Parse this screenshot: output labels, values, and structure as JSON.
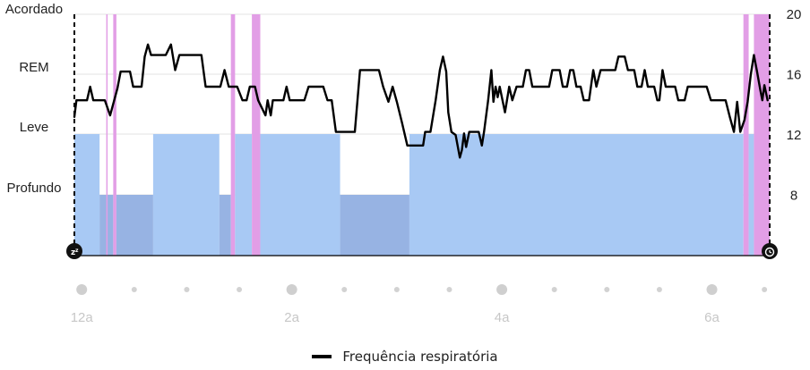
{
  "chart_data": {
    "type": "line",
    "title": "",
    "left_axis": {
      "type": "category",
      "categories": [
        "Acordado",
        "REM",
        "Leve",
        "Profundo"
      ]
    },
    "right_axis": {
      "ticks": [
        20,
        16,
        12,
        8
      ],
      "ylim": [
        4,
        20
      ]
    },
    "x_axis": {
      "ticks": [
        {
          "label": "12a",
          "hour": 0,
          "major": true
        },
        {
          "label": "",
          "hour": 0.5,
          "major": false
        },
        {
          "label": "",
          "hour": 1,
          "major": false
        },
        {
          "label": "",
          "hour": 1.5,
          "major": false
        },
        {
          "label": "2a",
          "hour": 2,
          "major": true
        },
        {
          "label": "",
          "hour": 2.5,
          "major": false
        },
        {
          "label": "",
          "hour": 3,
          "major": false
        },
        {
          "label": "",
          "hour": 3.5,
          "major": false
        },
        {
          "label": "4a",
          "hour": 4,
          "major": true
        },
        {
          "label": "",
          "hour": 4.5,
          "major": false
        },
        {
          "label": "",
          "hour": 5,
          "major": false
        },
        {
          "label": "",
          "hour": 5.5,
          "major": false
        },
        {
          "label": "6a",
          "hour": 6,
          "major": true
        },
        {
          "label": "",
          "hour": 6.5,
          "major": false
        }
      ],
      "range_hours": [
        -0.07,
        6.55
      ]
    },
    "sleep_window": {
      "start_hour": -0.07,
      "end_hour": 6.55
    },
    "stages": [
      {
        "stage": "Leve",
        "start": -0.07,
        "end": 0.17
      },
      {
        "stage": "Profundo",
        "start": 0.17,
        "end": 0.3
      },
      {
        "stage": "Acordado",
        "start": 0.3,
        "end": 0.33
      },
      {
        "stage": "Profundo",
        "start": 0.33,
        "end": 0.68
      },
      {
        "stage": "Leve",
        "start": 0.68,
        "end": 1.31
      },
      {
        "stage": "Profundo",
        "start": 1.31,
        "end": 1.42
      },
      {
        "stage": "Acordado",
        "start": 1.42,
        "end": 1.46
      },
      {
        "stage": "Leve",
        "start": 1.46,
        "end": 1.62
      },
      {
        "stage": "Acordado",
        "start": 1.62,
        "end": 1.7
      },
      {
        "stage": "Leve",
        "start": 1.7,
        "end": 2.46
      },
      {
        "stage": "Profundo",
        "start": 2.46,
        "end": 3.12
      },
      {
        "stage": "Leve",
        "start": 3.12,
        "end": 6.3
      },
      {
        "stage": "Acordado",
        "start": 6.3,
        "end": 6.35
      },
      {
        "stage": "Leve",
        "start": 6.35,
        "end": 6.4
      },
      {
        "stage": "Acordado",
        "start": 6.4,
        "end": 6.55
      }
    ],
    "series": [
      {
        "name": "Frequência respiratória",
        "color": "#000000",
        "points": [
          [
            -0.07,
            13.2
          ],
          [
            -0.05,
            14.3
          ],
          [
            0.05,
            14.3
          ],
          [
            0.08,
            15.2
          ],
          [
            0.11,
            14.3
          ],
          [
            0.22,
            14.3
          ],
          [
            0.27,
            13.3
          ],
          [
            0.34,
            15.1
          ],
          [
            0.37,
            16.2
          ],
          [
            0.46,
            16.2
          ],
          [
            0.49,
            15.2
          ],
          [
            0.57,
            15.2
          ],
          [
            0.6,
            17.2
          ],
          [
            0.63,
            18.0
          ],
          [
            0.66,
            17.3
          ],
          [
            0.8,
            17.3
          ],
          [
            0.85,
            18.0
          ],
          [
            0.89,
            16.3
          ],
          [
            0.93,
            17.3
          ],
          [
            1.14,
            17.3
          ],
          [
            1.18,
            15.2
          ],
          [
            1.32,
            15.2
          ],
          [
            1.36,
            16.3
          ],
          [
            1.4,
            15.2
          ],
          [
            1.48,
            15.2
          ],
          [
            1.53,
            14.3
          ],
          [
            1.57,
            14.3
          ],
          [
            1.6,
            15.2
          ],
          [
            1.65,
            15.2
          ],
          [
            1.68,
            14.3
          ],
          [
            1.75,
            13.3
          ],
          [
            1.77,
            14.3
          ],
          [
            1.8,
            13.3
          ],
          [
            1.82,
            14.3
          ],
          [
            1.92,
            14.3
          ],
          [
            1.95,
            15.2
          ],
          [
            1.98,
            14.3
          ],
          [
            2.12,
            14.3
          ],
          [
            2.16,
            15.2
          ],
          [
            2.3,
            15.2
          ],
          [
            2.34,
            14.3
          ],
          [
            2.38,
            14.3
          ],
          [
            2.42,
            12.2
          ],
          [
            2.6,
            12.2
          ],
          [
            2.65,
            16.3
          ],
          [
            2.83,
            16.3
          ],
          [
            2.87,
            15.2
          ],
          [
            2.92,
            14.2
          ],
          [
            2.96,
            15.2
          ],
          [
            3.0,
            14.2
          ],
          [
            3.05,
            12.8
          ],
          [
            3.1,
            11.3
          ],
          [
            3.25,
            11.3
          ],
          [
            3.27,
            12.2
          ],
          [
            3.32,
            12.2
          ],
          [
            3.37,
            14.3
          ],
          [
            3.41,
            16.3
          ],
          [
            3.44,
            17.2
          ],
          [
            3.47,
            16.2
          ],
          [
            3.49,
            13.5
          ],
          [
            3.52,
            12.2
          ],
          [
            3.56,
            12.0
          ],
          [
            3.6,
            10.5
          ],
          [
            3.62,
            11.0
          ],
          [
            3.64,
            12.1
          ],
          [
            3.66,
            11.2
          ],
          [
            3.69,
            12.2
          ],
          [
            3.78,
            12.2
          ],
          [
            3.81,
            11.3
          ],
          [
            3.83,
            12.2
          ],
          [
            3.87,
            14.3
          ],
          [
            3.9,
            16.3
          ],
          [
            3.92,
            14.2
          ],
          [
            3.94,
            15.2
          ],
          [
            3.96,
            14.5
          ],
          [
            3.98,
            15.2
          ],
          [
            4.03,
            13.5
          ],
          [
            4.07,
            15.2
          ],
          [
            4.1,
            14.3
          ],
          [
            4.14,
            15.2
          ],
          [
            4.2,
            15.2
          ],
          [
            4.23,
            16.3
          ],
          [
            4.26,
            16.3
          ],
          [
            4.29,
            15.2
          ],
          [
            4.45,
            15.2
          ],
          [
            4.48,
            16.3
          ],
          [
            4.55,
            16.3
          ],
          [
            4.58,
            15.2
          ],
          [
            4.62,
            15.2
          ],
          [
            4.65,
            16.3
          ],
          [
            4.68,
            16.3
          ],
          [
            4.71,
            15.2
          ],
          [
            4.75,
            15.2
          ],
          [
            4.78,
            14.3
          ],
          [
            4.83,
            14.3
          ],
          [
            4.87,
            16.3
          ],
          [
            4.9,
            15.2
          ],
          [
            4.94,
            16.3
          ],
          [
            5.08,
            16.3
          ],
          [
            5.11,
            17.2
          ],
          [
            5.17,
            17.2
          ],
          [
            5.2,
            16.3
          ],
          [
            5.26,
            16.3
          ],
          [
            5.29,
            15.2
          ],
          [
            5.33,
            15.2
          ],
          [
            5.36,
            16.3
          ],
          [
            5.39,
            15.2
          ],
          [
            5.45,
            15.2
          ],
          [
            5.48,
            14.3
          ],
          [
            5.5,
            14.3
          ],
          [
            5.53,
            16.3
          ],
          [
            5.56,
            15.2
          ],
          [
            5.65,
            15.2
          ],
          [
            5.68,
            14.3
          ],
          [
            5.74,
            14.3
          ],
          [
            5.77,
            15.2
          ],
          [
            5.95,
            15.2
          ],
          [
            5.99,
            14.3
          ],
          [
            6.13,
            14.3
          ],
          [
            6.17,
            13.2
          ],
          [
            6.21,
            12.2
          ],
          [
            6.24,
            14.2
          ],
          [
            6.27,
            12.2
          ],
          [
            6.31,
            13.0
          ],
          [
            6.34,
            14.2
          ],
          [
            6.37,
            16.0
          ],
          [
            6.4,
            17.3
          ],
          [
            6.43,
            16.2
          ],
          [
            6.46,
            15.0
          ],
          [
            6.48,
            14.3
          ],
          [
            6.5,
            15.3
          ],
          [
            6.53,
            14.3
          ]
        ]
      }
    ],
    "legend": [
      {
        "label": "Frequência respiratória",
        "color": "#000000"
      }
    ],
    "colors": {
      "Acordado": "#e29ee6",
      "Leve": "#a8c9f4",
      "Profundo": "#97b3e3",
      "grid": "#e3e3e3",
      "axis_text": "#222222",
      "tick_text": "#c7c7c7",
      "dot_major": "#cfcfcf",
      "dot_minor": "#d2d2d2"
    },
    "icons": {
      "start": "sleep-zzz-icon",
      "end": "alarm-clock-icon"
    }
  }
}
